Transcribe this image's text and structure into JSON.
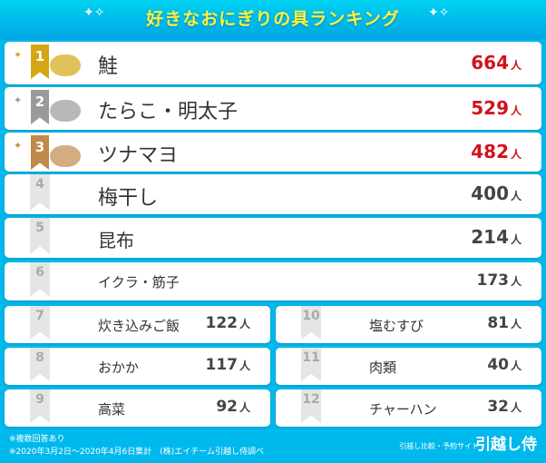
{
  "title": "好きなおにぎりの具ランキング",
  "unit": "人",
  "colors": {
    "top3": "#d3121b",
    "normal": "#444444",
    "gold": "#d4a614",
    "silver": "#9a9a9a",
    "bronze": "#c08a4a",
    "background": "#00b9ec"
  },
  "ranking": [
    {
      "rank": "1",
      "name": "鮭",
      "count": "664"
    },
    {
      "rank": "2",
      "name": "たらこ・明太子",
      "count": "529"
    },
    {
      "rank": "3",
      "name": "ツナマヨ",
      "count": "482"
    },
    {
      "rank": "4",
      "name": "梅干し",
      "count": "400"
    },
    {
      "rank": "5",
      "name": "昆布",
      "count": "214"
    },
    {
      "rank": "6",
      "name": "イクラ・筋子",
      "count": "173"
    },
    {
      "rank": "7",
      "name": "炊き込みご飯",
      "count": "122"
    },
    {
      "rank": "8",
      "name": "おかか",
      "count": "117"
    },
    {
      "rank": "9",
      "name": "高菜",
      "count": "92"
    },
    {
      "rank": "10",
      "name": "塩むすび",
      "count": "81"
    },
    {
      "rank": "11",
      "name": "肉類",
      "count": "40"
    },
    {
      "rank": "12",
      "name": "チャーハン",
      "count": "32"
    }
  ],
  "footer": {
    "note1": "※複数回答あり",
    "note2": "※2020年3月2日～2020年4月6日集計　(株)エイチーム引越し侍調べ",
    "site_tagline": "引越し比較・予約サイト",
    "logo": "引越し侍"
  }
}
